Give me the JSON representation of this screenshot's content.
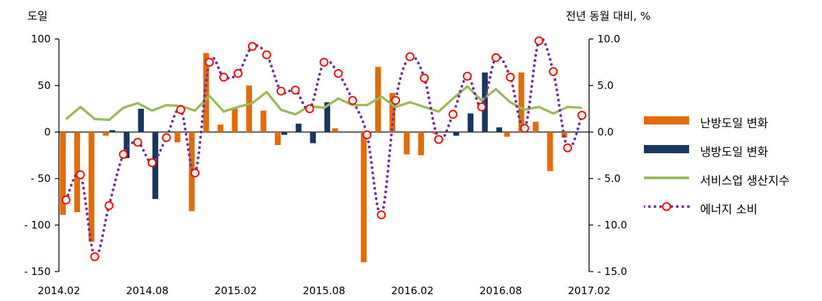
{
  "chart_data": {
    "type": "bar",
    "left_axis_title": "도일",
    "right_axis_title": "전년 동월 대비, %",
    "x_tick_labels": [
      "2014.02",
      "2014.08",
      "2015.02",
      "2015.08",
      "2016.02",
      "2016.08",
      "2017.02"
    ],
    "left_axis": {
      "min": -150,
      "max": 100,
      "ticks": [
        100,
        50,
        0,
        -50,
        -100,
        -150
      ],
      "tick_labels": [
        "100",
        "50",
        "0",
        "- 50",
        "- 100",
        "- 150"
      ]
    },
    "right_axis": {
      "min": -15,
      "max": 10,
      "ticks": [
        10,
        5,
        0,
        -5,
        -10,
        -15
      ],
      "tick_labels": [
        "10.0",
        "5.0",
        "0.0",
        "- 5.0",
        "- 10.0",
        "- 15.0"
      ]
    },
    "categories": [
      "2014.02",
      "2014.03",
      "2014.04",
      "2014.05",
      "2014.06",
      "2014.07",
      "2014.08",
      "2014.09",
      "2014.10",
      "2014.11",
      "2014.12",
      "2015.01",
      "2015.02",
      "2015.03",
      "2015.04",
      "2015.05",
      "2015.06",
      "2015.07",
      "2015.08",
      "2015.09",
      "2015.10",
      "2015.11",
      "2015.12",
      "2016.01",
      "2016.02",
      "2016.03",
      "2016.04",
      "2016.05",
      "2016.06",
      "2016.07",
      "2016.08",
      "2016.09",
      "2016.10",
      "2016.11",
      "2016.12",
      "2017.01",
      "2017.02"
    ],
    "series": [
      {
        "name": "난방도일 변화",
        "kind": "bar",
        "axis": "left",
        "color": "#E36C0A",
        "values": [
          -89,
          -86,
          -118,
          -4,
          0,
          0,
          0,
          0,
          -11,
          -85,
          85,
          8,
          25,
          50,
          23,
          -14,
          0,
          0,
          0,
          4,
          0,
          -140,
          70,
          42,
          -24,
          -25,
          -2,
          0,
          0,
          0,
          0,
          -5,
          64,
          11,
          -42,
          -6,
          0
        ]
      },
      {
        "name": "냉방도일 변화",
        "kind": "bar",
        "axis": "left",
        "color": "#17375E",
        "values": [
          0,
          0,
          0,
          2,
          -28,
          25,
          -72,
          0,
          0,
          0,
          0,
          0,
          0,
          0,
          0,
          -3,
          9,
          -12,
          32,
          0,
          0,
          0,
          0,
          0,
          0,
          0,
          0,
          -4,
          20,
          64,
          5,
          0,
          0,
          0,
          0,
          0,
          0
        ]
      },
      {
        "name": "서비스업 생산지수",
        "kind": "line",
        "axis": "right",
        "color": "#9BBB59",
        "values": [
          1.4,
          2.7,
          1.4,
          1.3,
          2.6,
          3.1,
          2.3,
          2.9,
          2.8,
          2.3,
          3.9,
          2.2,
          2.7,
          3.1,
          4.3,
          2.4,
          1.9,
          2.8,
          2.6,
          3.6,
          2.9,
          2.9,
          3.8,
          2.7,
          3.2,
          2.7,
          2.2,
          3.6,
          4.9,
          3.4,
          4.6,
          3.2,
          2.4,
          2.7,
          2.0,
          2.7,
          2.6
        ]
      },
      {
        "name": "에너지 소비",
        "kind": "dotted-line-markers",
        "axis": "right",
        "color": "#7030A0",
        "marker_color": "#FF0000",
        "values": [
          -7.3,
          -4.6,
          -13.4,
          -7.9,
          -2.4,
          -1.1,
          -3.3,
          -0.6,
          2.4,
          -4.4,
          7.5,
          5.9,
          6.3,
          9.2,
          8.3,
          4.4,
          4.5,
          2.5,
          7.5,
          6.3,
          3.4,
          -0.3,
          -8.9,
          3.4,
          8.1,
          5.8,
          -0.8,
          1.9,
          6.0,
          2.7,
          8.0,
          5.9,
          0.4,
          9.8,
          6.5,
          -1.7,
          1.8
        ]
      }
    ]
  }
}
